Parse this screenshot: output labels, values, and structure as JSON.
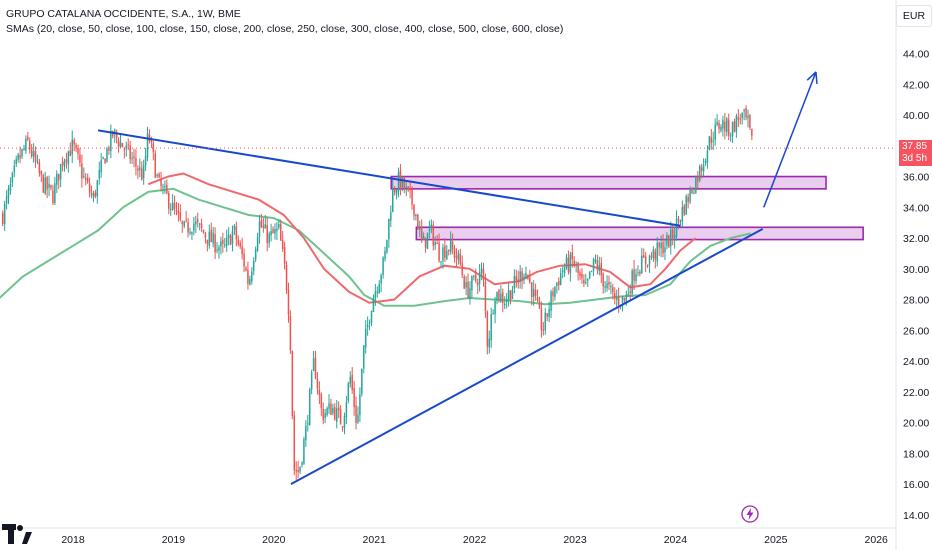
{
  "header": {
    "title": "GRUPO CATALANA OCCIDENTE, S.A., 1W, BME",
    "indicator": "SMAs (20, close, 50, close, 100, close, 150, close, 200, close, 250, close, 300, close, 400, close, 500, close, 600, close)",
    "currency": "EUR"
  },
  "price_tag": {
    "price": "37.85",
    "countdown": "3d 5h"
  },
  "icons": {
    "logo": "tradingview-logo-icon",
    "event": "lightning-bolt-icon"
  },
  "colors": {
    "up": "#26a69a",
    "down": "#ef5350",
    "trendline": "#1848cc",
    "zone_fill": "#e1bee7",
    "zone_border": "#9c27b0",
    "sma_red": "#f0686c",
    "sma_green": "#6fc28f",
    "price_line": "#f7525f"
  },
  "chart_data": {
    "type": "candlestick",
    "title": "GRUPO CATALANA OCCIDENTE, S.A., 1W, BME",
    "ylim": [
      13.5,
      45.5
    ],
    "y_ticks": [
      "44.00",
      "42.00",
      "40.00",
      "38.00",
      "36.00",
      "34.00",
      "32.00",
      "30.00",
      "28.00",
      "26.00",
      "24.00",
      "22.00",
      "20.00",
      "18.00",
      "16.00",
      "14.00"
    ],
    "x_ticks": [
      "2018",
      "2019",
      "2020",
      "2021",
      "2022",
      "2023",
      "2024",
      "2025",
      "2026"
    ],
    "last_price": 37.85,
    "price_path": [
      [
        2017.3,
        33.5
      ],
      [
        2017.45,
        37.0
      ],
      [
        2017.55,
        38.2
      ],
      [
        2017.7,
        35.5
      ],
      [
        2017.8,
        34.8
      ],
      [
        2017.9,
        37.2
      ],
      [
        2018.0,
        38.0
      ],
      [
        2018.1,
        36.0
      ],
      [
        2018.2,
        34.5
      ],
      [
        2018.3,
        37.0
      ],
      [
        2018.4,
        38.8
      ],
      [
        2018.55,
        37.5
      ],
      [
        2018.7,
        36.0
      ],
      [
        2018.75,
        38.8
      ],
      [
        2018.85,
        35.5
      ],
      [
        2018.95,
        34.5
      ],
      [
        2019.1,
        32.5
      ],
      [
        2019.2,
        33.0
      ],
      [
        2019.35,
        32.0
      ],
      [
        2019.5,
        31.2
      ],
      [
        2019.6,
        32.5
      ],
      [
        2019.7,
        30.5
      ],
      [
        2019.75,
        29.0
      ],
      [
        2019.85,
        33.0
      ],
      [
        2019.95,
        32.0
      ],
      [
        2020.05,
        32.5
      ],
      [
        2020.12,
        29.5
      ],
      [
        2020.16,
        26.5
      ],
      [
        2020.2,
        17.0
      ],
      [
        2020.25,
        16.8
      ],
      [
        2020.32,
        19.5
      ],
      [
        2020.4,
        24.0
      ],
      [
        2020.48,
        20.5
      ],
      [
        2020.58,
        21.0
      ],
      [
        2020.68,
        20.0
      ],
      [
        2020.76,
        23.0
      ],
      [
        2020.83,
        19.8
      ],
      [
        2020.9,
        25.0
      ],
      [
        2020.98,
        28.0
      ],
      [
        2021.1,
        30.5
      ],
      [
        2021.18,
        35.0
      ],
      [
        2021.25,
        35.8
      ],
      [
        2021.32,
        35.0
      ],
      [
        2021.4,
        34.0
      ],
      [
        2021.48,
        31.5
      ],
      [
        2021.56,
        32.5
      ],
      [
        2021.65,
        31.0
      ],
      [
        2021.75,
        31.5
      ],
      [
        2021.85,
        30.5
      ],
      [
        2021.92,
        28.5
      ],
      [
        2022.0,
        29.2
      ],
      [
        2022.08,
        29.8
      ],
      [
        2022.13,
        25.0
      ],
      [
        2022.2,
        28.5
      ],
      [
        2022.3,
        28.0
      ],
      [
        2022.4,
        29.0
      ],
      [
        2022.5,
        30.0
      ],
      [
        2022.58,
        28.5
      ],
      [
        2022.68,
        26.0
      ],
      [
        2022.78,
        28.5
      ],
      [
        2022.88,
        30.0
      ],
      [
        2022.98,
        30.5
      ],
      [
        2023.1,
        28.5
      ],
      [
        2023.2,
        30.5
      ],
      [
        2023.3,
        29.0
      ],
      [
        2023.4,
        28.0
      ],
      [
        2023.5,
        28.0
      ],
      [
        2023.6,
        30.0
      ],
      [
        2023.7,
        30.5
      ],
      [
        2023.8,
        31.0
      ],
      [
        2023.88,
        31.5
      ],
      [
        2023.96,
        32.0
      ],
      [
        2024.05,
        33.5
      ],
      [
        2024.15,
        35.0
      ],
      [
        2024.25,
        36.5
      ],
      [
        2024.35,
        38.5
      ],
      [
        2024.45,
        39.5
      ],
      [
        2024.55,
        39.0
      ],
      [
        2024.65,
        40.0
      ],
      [
        2024.72,
        39.5
      ],
      [
        2024.77,
        37.85
      ]
    ],
    "sma_red": [
      [
        2018.75,
        35.5
      ],
      [
        2018.95,
        36.0
      ],
      [
        2019.1,
        36.2
      ],
      [
        2019.35,
        35.5
      ],
      [
        2019.6,
        35.0
      ],
      [
        2019.85,
        34.5
      ],
      [
        2020.1,
        33.5
      ],
      [
        2020.3,
        32.0
      ],
      [
        2020.5,
        30.0
      ],
      [
        2020.75,
        28.5
      ],
      [
        2020.95,
        27.8
      ],
      [
        2021.2,
        28.0
      ],
      [
        2021.45,
        29.5
      ],
      [
        2021.7,
        30.2
      ],
      [
        2021.95,
        30.0
      ],
      [
        2022.2,
        29.0
      ],
      [
        2022.45,
        29.2
      ],
      [
        2022.62,
        29.8
      ],
      [
        2022.85,
        30.2
      ],
      [
        2023.1,
        30.3
      ],
      [
        2023.35,
        29.8
      ],
      [
        2023.55,
        28.8
      ],
      [
        2023.75,
        29.0
      ],
      [
        2023.9,
        30.0
      ],
      [
        2024.05,
        31.2
      ],
      [
        2024.2,
        32.0
      ]
    ],
    "sma_green": [
      [
        2017.25,
        28.0
      ],
      [
        2017.5,
        29.5
      ],
      [
        2017.75,
        30.5
      ],
      [
        2018.0,
        31.5
      ],
      [
        2018.25,
        32.5
      ],
      [
        2018.5,
        34.0
      ],
      [
        2018.75,
        35.0
      ],
      [
        2019.0,
        35.2
      ],
      [
        2019.25,
        34.5
      ],
      [
        2019.5,
        34.0
      ],
      [
        2019.75,
        33.5
      ],
      [
        2020.0,
        33.3
      ],
      [
        2020.25,
        32.5
      ],
      [
        2020.5,
        31.0
      ],
      [
        2020.75,
        29.5
      ],
      [
        2020.9,
        28.3
      ],
      [
        2021.1,
        27.6
      ],
      [
        2021.4,
        27.6
      ],
      [
        2021.7,
        27.9
      ],
      [
        2021.95,
        28.1
      ],
      [
        2022.2,
        28.0
      ],
      [
        2022.45,
        27.9
      ],
      [
        2022.7,
        27.7
      ],
      [
        2022.95,
        27.8
      ],
      [
        2023.2,
        28.0
      ],
      [
        2023.45,
        28.2
      ],
      [
        2023.7,
        28.3
      ],
      [
        2023.95,
        29.0
      ],
      [
        2024.15,
        30.5
      ],
      [
        2024.35,
        31.5
      ],
      [
        2024.55,
        32.0
      ],
      [
        2024.75,
        32.3
      ]
    ],
    "trendlines": [
      {
        "from": [
          2018.25,
          39.0
        ],
        "to": [
          2024.05,
          32.8
        ]
      },
      {
        "from": [
          2020.17,
          16.0
        ],
        "to": [
          2024.87,
          32.6
        ]
      }
    ],
    "arrow": {
      "from": [
        2024.88,
        34.0
      ],
      "to": [
        2025.4,
        42.8
      ]
    },
    "zones": [
      {
        "x_from": 2021.17,
        "x_to": 2025.5,
        "y_low": 35.2,
        "y_high": 36.0
      },
      {
        "x_from": 2021.42,
        "x_to": 2025.87,
        "y_low": 31.9,
        "y_high": 32.7
      }
    ]
  }
}
